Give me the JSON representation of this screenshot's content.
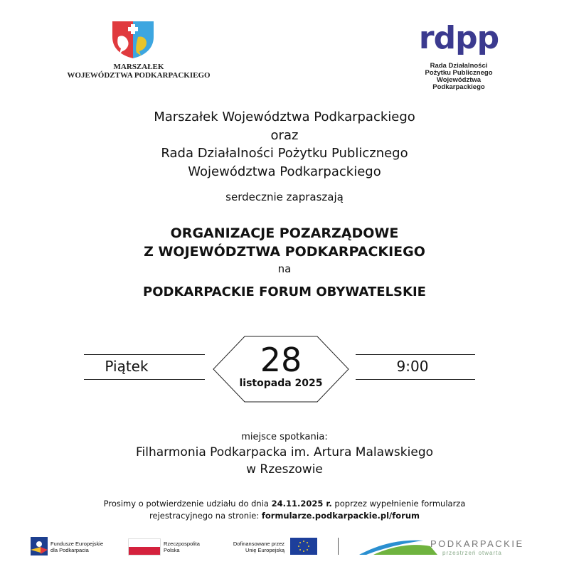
{
  "header": {
    "left_logo": {
      "line1": "MARSZAŁEK",
      "line2": "WOJEWÓDZTWA PODKARPACKIEGO"
    },
    "right_logo": {
      "mark": "rdpp",
      "lines": [
        "Rada Działalności",
        "Pożytku Publicznego",
        "Województwa",
        "Podkarpackiego"
      ],
      "color": "#3b3a8f"
    }
  },
  "intro": {
    "lines": [
      "Marszałek Województwa Podkarpackiego",
      "oraz",
      "Rada Działalności Pożytku Publicznego",
      "Województwa Podkarpackiego"
    ],
    "invite": "serdecznie zapraszają"
  },
  "audience": {
    "lines": [
      "ORGANIZACJE POZARZĄDOWE",
      "Z WOJEWÓDZTWA PODKARPACKIEGO"
    ],
    "na": "na"
  },
  "event_title": "PODKARPACKIE FORUM OBYWATELSKIE",
  "date": {
    "weekday": "Piątek",
    "day": "28",
    "month_year": "listopada 2025",
    "time": "9:00"
  },
  "venue": {
    "label": "miejsce spotkania:",
    "name": "Filharmonia Podkarpacka im. Artura Malawskiego",
    "city": "w Rzeszowie"
  },
  "rsvp": {
    "part1": "Prosimy o potwierdzenie udziału do dnia ",
    "deadline": "24.11.2025 r.",
    "part2": " poprzez wypełnienie formularza",
    "part3": "rejestracyjnego na stronie: ",
    "url": "formularze.podkarpackie.pl/forum"
  },
  "footer": {
    "fe": [
      "Fundusze Europejskie",
      "dla Podkarpacia"
    ],
    "rp": [
      "Rzeczpospolita",
      "Polska"
    ],
    "eu": [
      "Dofinansowane przez",
      "Unię Europejską"
    ],
    "podkarpackie": "PODKARPACKIE",
    "podkarpackie_sub": "przestrzeń otwarta"
  }
}
